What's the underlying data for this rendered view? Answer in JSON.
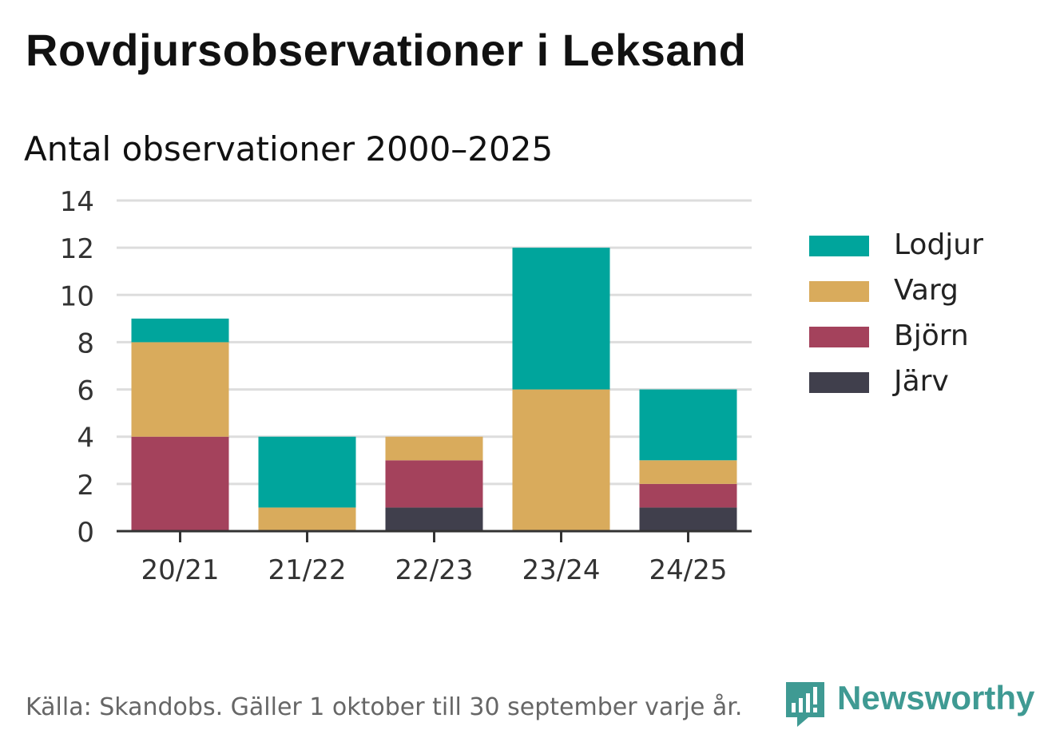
{
  "header": {
    "title": "Rovdjursobservationer i Leksand",
    "subtitle": "Antal observationer 2000–2025"
  },
  "colors": {
    "Lodjur": "#00a59c",
    "Varg": "#d9ab5c",
    "Björn": "#a4425c",
    "Järv": "#403f4c",
    "grid": "#dddddd",
    "axis": "#333333",
    "brand": "#3f9a93"
  },
  "legend": {
    "items": [
      {
        "label": "Lodjur",
        "color": "#00a59c"
      },
      {
        "label": "Varg",
        "color": "#d9ab5c"
      },
      {
        "label": "Björn",
        "color": "#a4425c"
      },
      {
        "label": "Järv",
        "color": "#403f4c"
      }
    ]
  },
  "chart_data": {
    "type": "bar",
    "stacked": true,
    "title": "Antal observationer 2000–2025",
    "xlabel": "",
    "ylabel": "",
    "categories": [
      "20/21",
      "21/22",
      "22/23",
      "23/24",
      "24/25"
    ],
    "series": [
      {
        "name": "Järv",
        "values": [
          0,
          0,
          1,
          0,
          1
        ]
      },
      {
        "name": "Björn",
        "values": [
          4,
          0,
          2,
          0,
          1
        ]
      },
      {
        "name": "Varg",
        "values": [
          4,
          1,
          1,
          6,
          1
        ]
      },
      {
        "name": "Lodjur",
        "values": [
          1,
          3,
          0,
          6,
          3
        ]
      }
    ],
    "ylim": [
      0,
      14
    ],
    "yticks": [
      "0",
      "2",
      "4",
      "6",
      "8",
      "10",
      "12",
      "14"
    ],
    "grid": true,
    "legend_position": "right"
  },
  "footer": {
    "source": "Källa: Skandobs. Gäller 1 oktober till 30 september varje år."
  },
  "brand": {
    "name": "Newsworthy",
    "icon": "newsworthy-logo-icon"
  }
}
